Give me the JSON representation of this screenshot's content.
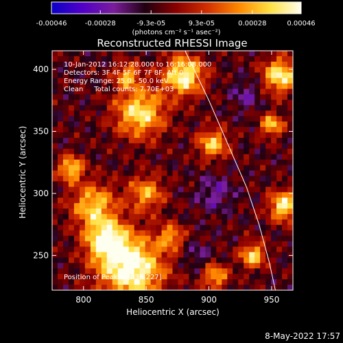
{
  "chart_data": {
    "type": "heatmap",
    "title": "Reconstructed RHESSI Image",
    "xlabel": "Heliocentric X (arcsec)",
    "ylabel": "Heliocentric Y (arcsec)",
    "xlim": [
      775,
      967
    ],
    "ylim": [
      222,
      415
    ],
    "x_ticks": [
      800,
      850,
      900,
      950
    ],
    "y_ticks": [
      250,
      300,
      350,
      400
    ],
    "colorbar": {
      "range": [
        -0.00046,
        0.00046
      ],
      "tick_values": [
        -0.00046,
        -0.00028,
        -9.3e-05,
        9.3e-05,
        0.00028,
        0.00046
      ],
      "tick_labels": [
        "-0.00046",
        "-0.00028",
        "-9.3e-05",
        "9.3e-05",
        "0.00028",
        "0.00046"
      ],
      "unit_label": "(photons cm⁻² s⁻¹ asec⁻²)",
      "colormap_stops": [
        "#0a00c8",
        "#5200c8",
        "#7a1d9a",
        "#200010",
        "#8a0000",
        "#d23000",
        "#ff8800",
        "#ffe040",
        "#fffff0"
      ]
    },
    "annotations": {
      "time_range": "10-Jan-2012 16:12:28.000 to 16:16:08.000",
      "detectors": "Detectors: 3F 4F 5F 6F 7F 8F, Att 0",
      "energy_range": "Energy Range: 25.0 - 50.0 keV",
      "method_counts": "Clean     Total counts: 7.70E+03",
      "peak": "Position of Peak = [836,227]"
    },
    "limb_curve": [
      [
        881,
        415
      ],
      [
        900,
        375
      ],
      [
        915,
        340
      ],
      [
        930,
        305
      ],
      [
        940,
        275
      ],
      [
        948,
        245
      ],
      [
        953,
        222
      ]
    ],
    "bright_regions": [
      {
        "x": 838,
        "y": 240,
        "r": 26,
        "level": 1.0
      },
      {
        "x": 818,
        "y": 262,
        "r": 16,
        "level": 0.85
      },
      {
        "x": 808,
        "y": 290,
        "r": 18,
        "level": 0.7
      },
      {
        "x": 790,
        "y": 320,
        "r": 10,
        "level": 0.75
      },
      {
        "x": 850,
        "y": 300,
        "r": 14,
        "level": 0.6
      },
      {
        "x": 845,
        "y": 365,
        "r": 20,
        "level": 0.8
      },
      {
        "x": 880,
        "y": 395,
        "r": 16,
        "level": 0.9
      },
      {
        "x": 835,
        "y": 395,
        "r": 10,
        "level": 0.6
      },
      {
        "x": 903,
        "y": 340,
        "r": 12,
        "level": 0.7
      },
      {
        "x": 870,
        "y": 265,
        "r": 10,
        "level": 0.55
      },
      {
        "x": 957,
        "y": 395,
        "r": 14,
        "level": 0.85
      },
      {
        "x": 950,
        "y": 355,
        "r": 9,
        "level": 0.7
      },
      {
        "x": 960,
        "y": 290,
        "r": 12,
        "level": 0.85
      },
      {
        "x": 935,
        "y": 250,
        "r": 10,
        "level": 0.75
      },
      {
        "x": 905,
        "y": 233,
        "r": 10,
        "level": 0.65
      }
    ]
  },
  "footer": {
    "date": "8-May-2022 17:57"
  }
}
